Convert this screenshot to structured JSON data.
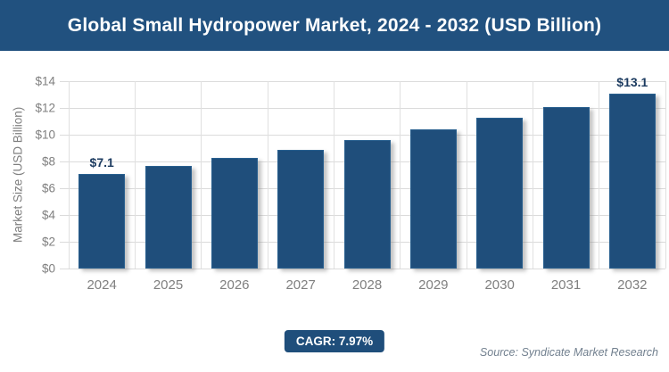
{
  "chart_data": {
    "type": "bar",
    "title": "Global Small Hydropower Market, 2024 - 2032 (USD Billion)",
    "categories": [
      "2024",
      "2025",
      "2026",
      "2027",
      "2028",
      "2029",
      "2030",
      "2031",
      "2032"
    ],
    "values": [
      7.1,
      7.7,
      8.3,
      8.9,
      9.6,
      10.4,
      11.3,
      12.1,
      13.1
    ],
    "point_labels": [
      "$7.1",
      "",
      "",
      "",
      "",
      "",
      "",
      "",
      "$13.1"
    ],
    "xlabel": "",
    "ylabel": "Market Size (USD Billion)",
    "ylim": [
      0,
      14
    ],
    "ytick_step": 2,
    "ytick_labels": [
      "$0",
      "$2",
      "$4",
      "$6",
      "$8",
      "$10",
      "$12",
      "$14"
    ],
    "grid": true,
    "legend": false,
    "bar_color": "#1F4E7B"
  },
  "footer": {
    "cagr_label": "CAGR: 7.97%",
    "source": "Source: Syndicate Market Research"
  },
  "colors": {
    "banner_bg": "#21517F",
    "bar_fill": "#1F4E7B",
    "bar_border": "#29608F",
    "gridline": "#DBDBDB",
    "axis_text": "#7F7F7F",
    "data_label": "#1B3A5F",
    "badge_bg": "#1F4E7B",
    "badge_text": "#FFFFFF",
    "source_text": "#72808F"
  }
}
